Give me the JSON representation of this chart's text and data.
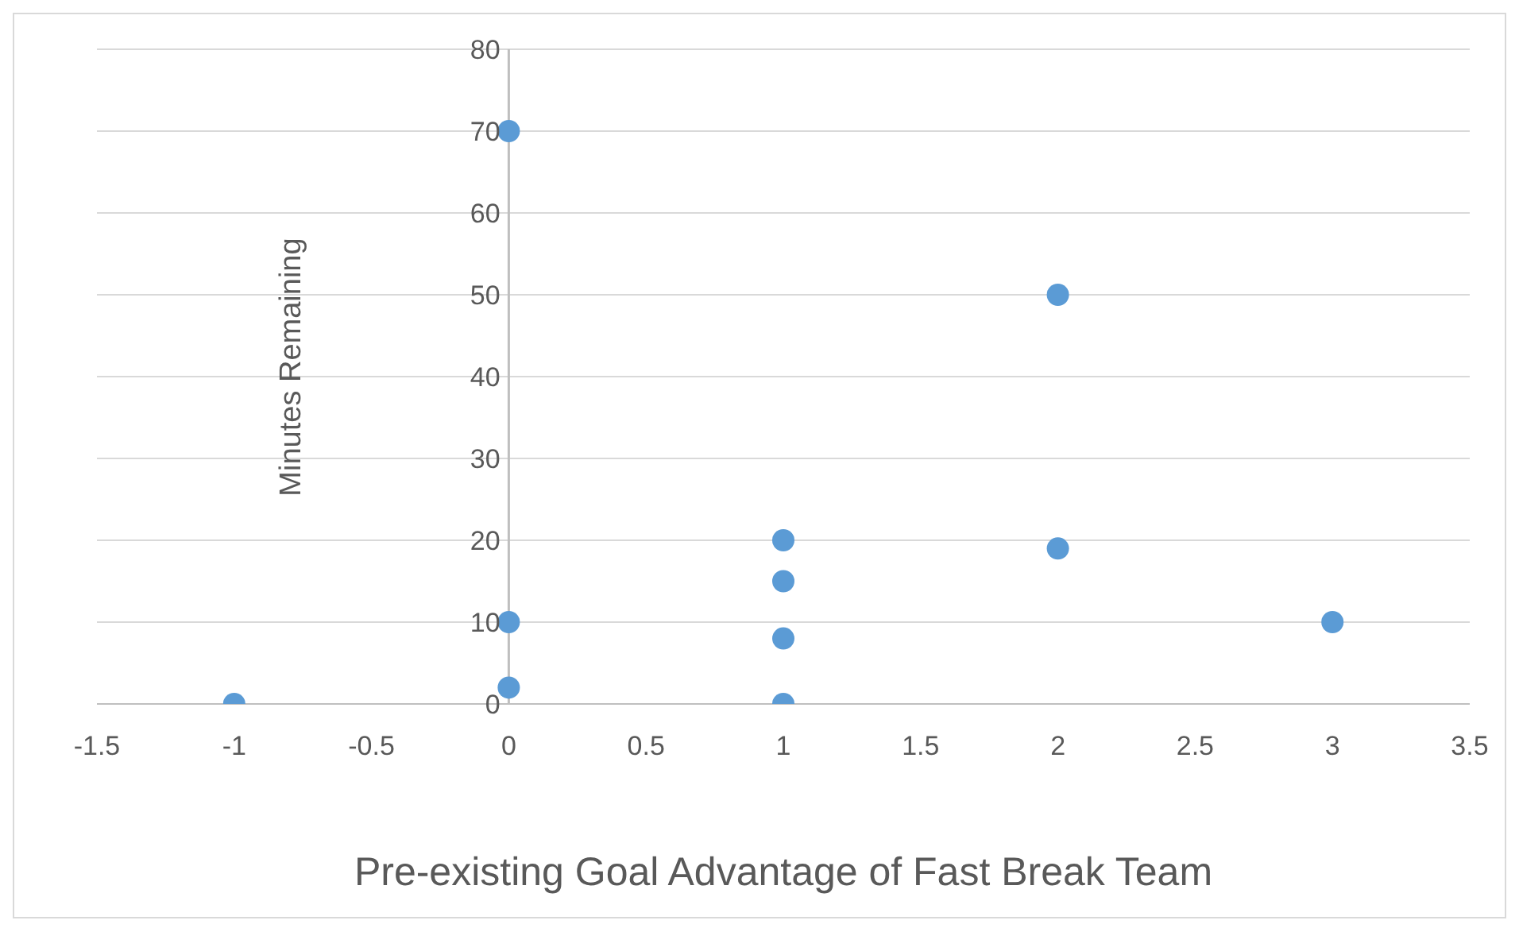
{
  "chart_data": {
    "type": "scatter",
    "xlabel": "Pre-existing Goal Advantage of Fast Break Team",
    "ylabel": "Minutes Remaining",
    "x": [
      -1,
      0,
      0,
      0,
      1,
      1,
      1,
      1,
      2,
      2,
      3
    ],
    "values": [
      0,
      70,
      10,
      2,
      20,
      15,
      8,
      0,
      50,
      19,
      10
    ],
    "color": "#5b9bd5",
    "marker": "circle",
    "xlim": [
      -1.5,
      3.5
    ],
    "xticks": [
      -1.5,
      -1,
      -0.5,
      0,
      0.5,
      1,
      1.5,
      2,
      2.5,
      3,
      3.5
    ],
    "ylim": [
      0,
      80
    ],
    "yticks": [
      0,
      10,
      20,
      30,
      40,
      50,
      60,
      70,
      80
    ],
    "grid": "y",
    "legend": false
  }
}
